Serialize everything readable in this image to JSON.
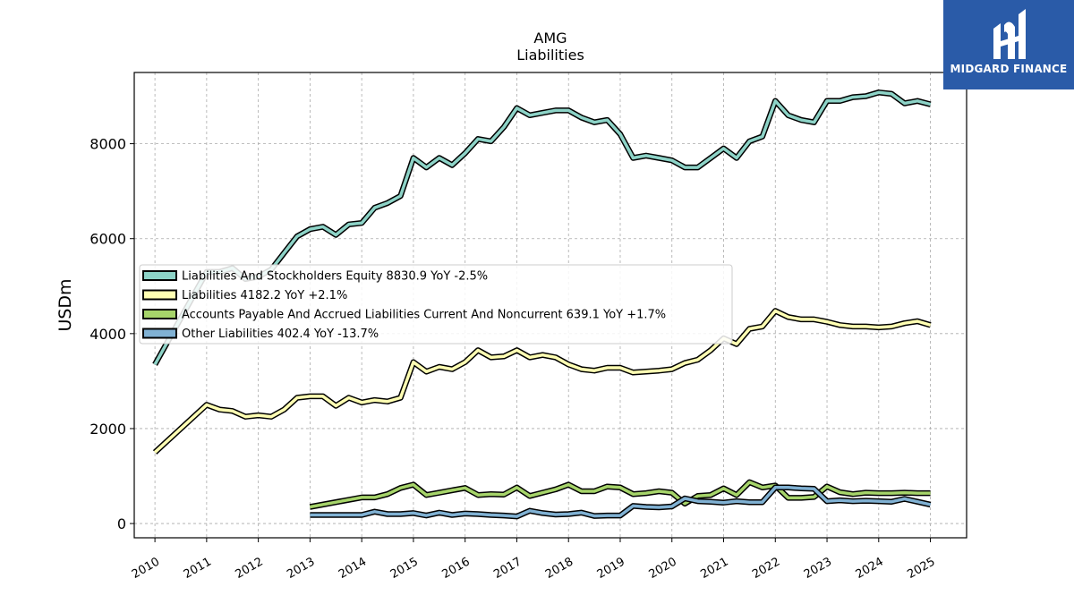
{
  "chart_data": {
    "type": "line",
    "title": "AMG",
    "subtitle": "Liabilities",
    "ylabel": "USDm",
    "xlabel": "",
    "xlim": [
      2009.6,
      2025.7
    ],
    "ylim": [
      -300,
      9500
    ],
    "yticks": [
      0,
      2000,
      4000,
      6000,
      8000
    ],
    "xticks": [
      2010,
      2011,
      2012,
      2013,
      2014,
      2015,
      2016,
      2017,
      2018,
      2019,
      2020,
      2021,
      2022,
      2023,
      2024,
      2025
    ],
    "grid": true,
    "legend_position": "center-left",
    "series": [
      {
        "name": "Liabilities And Stockholders Equity",
        "legend_label": "Liabilities And Stockholders Equity  8830.9 YoY -2.5%",
        "color": "#8dd3c7",
        "x": [
          2010.0,
          2011.0,
          2011.25,
          2011.5,
          2011.75,
          2012.0,
          2012.25,
          2012.5,
          2012.75,
          2013.0,
          2013.25,
          2013.5,
          2013.75,
          2014.0,
          2014.25,
          2014.5,
          2014.75,
          2015.0,
          2015.25,
          2015.5,
          2015.75,
          2016.0,
          2016.25,
          2016.5,
          2016.75,
          2017.0,
          2017.25,
          2017.5,
          2017.75,
          2018.0,
          2018.25,
          2018.5,
          2018.75,
          2019.0,
          2019.25,
          2019.5,
          2019.75,
          2020.0,
          2020.25,
          2020.5,
          2020.75,
          2021.0,
          2021.25,
          2021.5,
          2021.75,
          2022.0,
          2022.25,
          2022.5,
          2022.75,
          2023.0,
          2023.25,
          2023.5,
          2023.75,
          2024.0,
          2024.25,
          2024.5,
          2024.75,
          2025.0
        ],
        "values": [
          3350,
          5300,
          5300,
          5380,
          5150,
          5200,
          5350,
          5700,
          6050,
          6200,
          6250,
          6080,
          6300,
          6330,
          6650,
          6750,
          6900,
          7700,
          7500,
          7700,
          7550,
          7800,
          8100,
          8050,
          8350,
          8750,
          8600,
          8650,
          8700,
          8700,
          8550,
          8450,
          8500,
          8200,
          7700,
          7750,
          7700,
          7650,
          7500,
          7500,
          7700,
          7900,
          7700,
          8050,
          8150,
          8900,
          8600,
          8500,
          8450,
          8900,
          8900,
          8980,
          9000,
          9080,
          9050,
          8850,
          8900,
          8830
        ]
      },
      {
        "name": "Liabilities",
        "legend_label": "Liabilities  4182.2 YoY +2.1%",
        "color": "#ffffb3",
        "x": [
          2010.0,
          2011.0,
          2011.25,
          2011.5,
          2011.75,
          2012.0,
          2012.25,
          2012.5,
          2012.75,
          2013.0,
          2013.25,
          2013.5,
          2013.75,
          2014.0,
          2014.25,
          2014.5,
          2014.75,
          2015.0,
          2015.25,
          2015.5,
          2015.75,
          2016.0,
          2016.25,
          2016.5,
          2016.75,
          2017.0,
          2017.25,
          2017.5,
          2017.75,
          2018.0,
          2018.25,
          2018.5,
          2018.75,
          2019.0,
          2019.25,
          2019.5,
          2019.75,
          2020.0,
          2020.25,
          2020.5,
          2020.75,
          2021.0,
          2021.25,
          2021.5,
          2021.75,
          2022.0,
          2022.25,
          2022.5,
          2022.75,
          2023.0,
          2023.25,
          2023.5,
          2023.75,
          2024.0,
          2024.25,
          2024.5,
          2024.75,
          2025.0
        ],
        "values": [
          1500,
          2500,
          2400,
          2370,
          2250,
          2280,
          2250,
          2400,
          2650,
          2680,
          2680,
          2480,
          2650,
          2550,
          2600,
          2570,
          2650,
          3400,
          3200,
          3300,
          3250,
          3400,
          3650,
          3500,
          3520,
          3650,
          3500,
          3550,
          3500,
          3350,
          3250,
          3220,
          3280,
          3280,
          3180,
          3200,
          3220,
          3250,
          3380,
          3450,
          3650,
          3900,
          3780,
          4100,
          4150,
          4480,
          4350,
          4300,
          4300,
          4250,
          4180,
          4150,
          4150,
          4130,
          4150,
          4220,
          4260,
          4180
        ]
      },
      {
        "name": "Accounts Payable And Accrued Liabilities Current And Noncurrent",
        "legend_label": "Accounts Payable And Accrued Liabilities Current And Noncurrent  639.1 YoY +1.7%",
        "color": "#a6d46a",
        "x": [
          2013.0,
          2014.0,
          2014.25,
          2014.5,
          2014.75,
          2015.0,
          2015.25,
          2015.5,
          2015.75,
          2016.0,
          2016.25,
          2016.5,
          2016.75,
          2017.0,
          2017.25,
          2017.5,
          2017.75,
          2018.0,
          2018.25,
          2018.5,
          2018.75,
          2019.0,
          2019.25,
          2019.5,
          2019.75,
          2020.0,
          2020.25,
          2020.5,
          2020.75,
          2021.0,
          2021.25,
          2021.5,
          2021.75,
          2022.0,
          2022.25,
          2022.5,
          2022.75,
          2023.0,
          2023.25,
          2023.5,
          2023.75,
          2024.0,
          2024.25,
          2024.5,
          2024.75,
          2025.0
        ],
        "values": [
          350,
          550,
          550,
          620,
          750,
          820,
          600,
          650,
          700,
          750,
          600,
          620,
          610,
          760,
          580,
          650,
          720,
          820,
          680,
          680,
          780,
          760,
          620,
          640,
          680,
          650,
          420,
          580,
          600,
          740,
          600,
          870,
          760,
          800,
          540,
          540,
          560,
          780,
          660,
          620,
          650,
          640,
          640,
          650,
          640,
          640
        ]
      },
      {
        "name": "Other Liabilities",
        "legend_label": "Other Liabilities  402.4 YoY -13.7%",
        "color": "#80b1d3",
        "x": [
          2013.0,
          2014.0,
          2014.25,
          2014.5,
          2014.75,
          2015.0,
          2015.25,
          2015.5,
          2015.75,
          2016.0,
          2016.25,
          2016.5,
          2016.75,
          2017.0,
          2017.25,
          2017.5,
          2017.75,
          2018.0,
          2018.25,
          2018.5,
          2018.75,
          2019.0,
          2019.25,
          2019.5,
          2019.75,
          2020.0,
          2020.25,
          2020.5,
          2020.75,
          2021.0,
          2021.25,
          2021.5,
          2021.75,
          2022.0,
          2022.25,
          2022.5,
          2022.75,
          2023.0,
          2023.25,
          2023.5,
          2023.75,
          2024.0,
          2024.25,
          2024.5,
          2024.75,
          2025.0
        ],
        "values": [
          180,
          180,
          250,
          200,
          200,
          220,
          170,
          230,
          180,
          210,
          200,
          180,
          170,
          150,
          270,
          220,
          190,
          200,
          230,
          160,
          170,
          170,
          370,
          350,
          340,
          360,
          530,
          470,
          460,
          440,
          470,
          450,
          450,
          760,
          760,
          740,
          730,
          470,
          490,
          470,
          480,
          470,
          460,
          520,
          460,
          400
        ]
      }
    ]
  },
  "branding": {
    "logo_text": "MIDGARD FINANCE",
    "logo_color": "#2a5ba8"
  }
}
